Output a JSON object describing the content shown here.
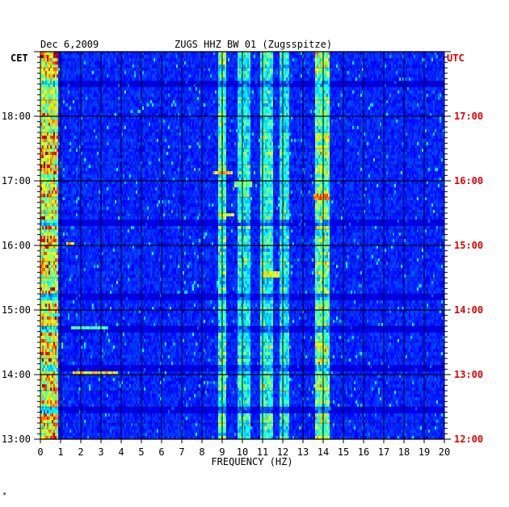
{
  "header": {
    "date": "Dec 6,2009",
    "station": "ZUGS HHZ BW 01 (Zugsspitze)",
    "left_tz": "CET",
    "right_tz": "UTC"
  },
  "xlabel": "FREQUENCY (HZ)",
  "footer_mark": "*",
  "colors": {
    "background": "#0000b4",
    "grid": "#000000",
    "utc_text": "#e00000",
    "text": "#000000"
  },
  "chart_data": {
    "type": "heatmap",
    "title": "ZUGS HHZ BW 01 (Zugsspitze)",
    "subtitle": "Dec 6,2009",
    "xlabel": "FREQUENCY (HZ)",
    "ylabel": "",
    "xlim": [
      0,
      20
    ],
    "ylim_hours_cet": [
      13.0,
      19.0
    ],
    "x_ticks": [
      "0",
      "1",
      "2",
      "3",
      "4",
      "5",
      "6",
      "7",
      "8",
      "9",
      "10",
      "11",
      "12",
      "13",
      "14",
      "15",
      "16",
      "17",
      "18",
      "19",
      "20"
    ],
    "y_ticks_cet": [
      {
        "hour": 13,
        "label": "13:00"
      },
      {
        "hour": 14,
        "label": "14:00"
      },
      {
        "hour": 15,
        "label": "15:00"
      },
      {
        "hour": 16,
        "label": "16:00"
      },
      {
        "hour": 17,
        "label": "17:00"
      },
      {
        "hour": 18,
        "label": "18:00"
      }
    ],
    "y_ticks_utc": [
      {
        "hour": 13,
        "label": "12:00"
      },
      {
        "hour": 14,
        "label": "13:00"
      },
      {
        "hour": 15,
        "label": "14:00"
      },
      {
        "hour": 16,
        "label": "15:00"
      },
      {
        "hour": 17,
        "label": "16:00"
      },
      {
        "hour": 18,
        "label": "17:00"
      }
    ],
    "energy_bands_hz": [
      {
        "from": 0.0,
        "to": 0.9,
        "level": 0.85
      },
      {
        "from": 8.8,
        "to": 9.2,
        "level": 0.5
      },
      {
        "from": 9.8,
        "to": 10.4,
        "level": 0.4
      },
      {
        "from": 10.9,
        "to": 11.5,
        "level": 0.45
      },
      {
        "from": 11.8,
        "to": 12.3,
        "level": 0.4
      },
      {
        "from": 13.6,
        "to": 14.3,
        "level": 0.6
      }
    ],
    "events": [
      {
        "time_cet": 14.72,
        "f_from": 1.5,
        "f_to": 3.4,
        "level": 0.85
      },
      {
        "time_cet": 14.02,
        "f_from": 1.6,
        "f_to": 3.8,
        "level": 0.75
      },
      {
        "time_cet": 16.03,
        "f_from": 1.3,
        "f_to": 1.7,
        "level": 0.8
      },
      {
        "time_cet": 16.75,
        "f_from": 13.5,
        "f_to": 14.3,
        "level": 0.85
      },
      {
        "time_cet": 17.12,
        "f_from": 8.6,
        "f_to": 9.5,
        "level": 0.75
      },
      {
        "time_cet": 16.48,
        "f_from": 8.8,
        "f_to": 9.6,
        "level": 0.7
      },
      {
        "time_cet": 15.55,
        "f_from": 11.0,
        "f_to": 11.8,
        "level": 0.7
      },
      {
        "time_cet": 16.95,
        "f_from": 9.6,
        "f_to": 10.5,
        "level": 0.6
      }
    ],
    "dark_rows_cet": [
      18.5,
      16.35,
      15.2,
      14.7,
      14.1,
      13.45
    ],
    "grid": true
  }
}
